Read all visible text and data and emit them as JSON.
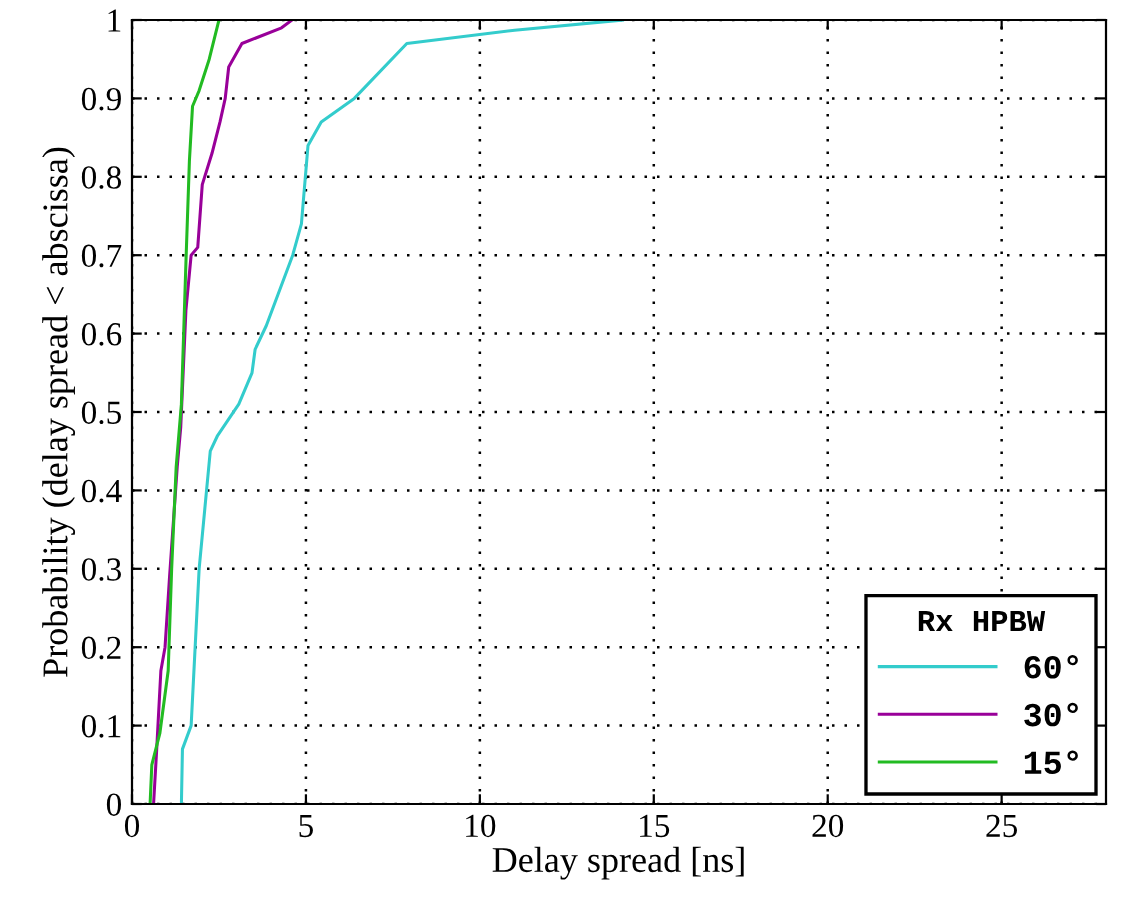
{
  "chart_data": {
    "type": "line",
    "xlabel": "Delay spread [ns]",
    "ylabel": "Probability (delay spread < abscissa)",
    "legend_title": "Rx HPBW",
    "xlim": [
      0,
      28
    ],
    "ylim": [
      0,
      1
    ],
    "xticks": [
      0,
      5,
      10,
      15,
      20,
      25
    ],
    "yticks": [
      0,
      0.1,
      0.2,
      0.3,
      0.4,
      0.5,
      0.6,
      0.7,
      0.8,
      0.9,
      1
    ],
    "grid": true,
    "legend": "bottom right",
    "line_style": "solid",
    "series": [
      {
        "name": "60°",
        "color": "#33cccc",
        "x": [
          1.42,
          1.45,
          1.7,
          1.93,
          2.25,
          2.46,
          3.07,
          3.45,
          3.54,
          3.86,
          4.62,
          4.87,
          5.06,
          5.44,
          6.39,
          7.9,
          11.0,
          14.1
        ],
        "values": [
          0,
          0.07,
          0.1,
          0.3,
          0.45,
          0.47,
          0.51,
          0.55,
          0.58,
          0.61,
          0.7,
          0.74,
          0.84,
          0.87,
          0.9,
          0.97,
          0.987,
          1.0
        ]
      },
      {
        "name": "30°",
        "color": "#990099",
        "x": [
          0.62,
          0.71,
          0.83,
          0.95,
          1.08,
          1.3,
          1.4,
          1.55,
          1.7,
          1.89,
          2.02,
          2.3,
          2.53,
          2.68,
          2.78,
          3.16,
          4.3,
          4.6
        ],
        "values": [
          0,
          0.07,
          0.17,
          0.2,
          0.29,
          0.43,
          0.48,
          0.63,
          0.7,
          0.71,
          0.79,
          0.83,
          0.87,
          0.9,
          0.94,
          0.97,
          0.99,
          1.0
        ]
      },
      {
        "name": "15°",
        "color": "#22bb22",
        "x": [
          0.52,
          0.57,
          0.8,
          1.04,
          1.14,
          1.27,
          1.42,
          1.55,
          1.65,
          1.74,
          1.93,
          2.22,
          2.5
        ],
        "values": [
          0,
          0.05,
          0.09,
          0.17,
          0.3,
          0.43,
          0.51,
          0.69,
          0.82,
          0.89,
          0.91,
          0.95,
          1.0
        ]
      }
    ]
  }
}
